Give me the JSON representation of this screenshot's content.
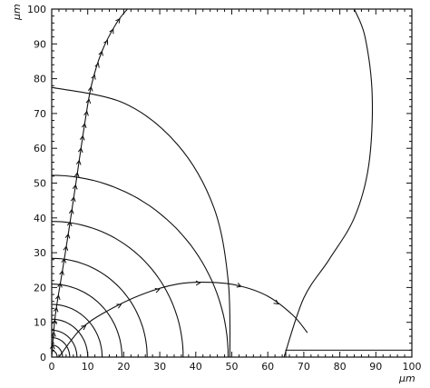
{
  "chart_data": {
    "type": "line",
    "title": "",
    "xlabel": "μm",
    "ylabel": "μm",
    "xlim": [
      0,
      100
    ],
    "ylim": [
      0,
      100
    ],
    "x_ticks": [
      "0",
      "10",
      "20",
      "30",
      "40",
      "50",
      "60",
      "70",
      "80",
      "90",
      "100"
    ],
    "y_ticks": [
      "0",
      "10",
      "20",
      "30",
      "40",
      "50",
      "60",
      "70",
      "80",
      "90",
      "100"
    ],
    "grid": false,
    "equipotential_lines": [
      {
        "x_intercept": 1.5
      },
      {
        "x_intercept": 3
      },
      {
        "x_intercept": 5
      },
      {
        "x_intercept": 7
      },
      {
        "x_intercept": 10
      },
      {
        "x_intercept": 14
      },
      {
        "x_intercept": 19.5
      },
      {
        "x_intercept": 26.5
      },
      {
        "x_intercept": 36.5
      },
      {
        "x_intercept": 49
      }
    ],
    "large_equipotential": {
      "points": [
        [
          0,
          77.5
        ],
        [
          20,
          73
        ],
        [
          35,
          61
        ],
        [
          45,
          43
        ],
        [
          49,
          22
        ],
        [
          49.5,
          0
        ]
      ]
    },
    "side_line": {
      "points": [
        [
          59.5,
          0
        ],
        [
          60.5,
          6
        ],
        [
          66,
          16
        ],
        [
          74,
          26
        ],
        [
          82,
          38
        ],
        [
          86,
          55
        ],
        [
          87,
          75
        ],
        [
          85,
          90
        ],
        [
          83,
          100
        ]
      ]
    },
    "outer_contour": {
      "points": [
        [
          84,
          100
        ],
        [
          87,
          92
        ],
        [
          89,
          75
        ],
        [
          88,
          55
        ],
        [
          84,
          40
        ],
        [
          77,
          28
        ],
        [
          70,
          17
        ],
        [
          64.5,
          0
        ]
      ]
    },
    "field_line_vertical": {
      "points": [
        [
          0,
          0
        ],
        [
          1,
          12
        ],
        [
          3,
          25
        ],
        [
          5,
          38
        ],
        [
          7,
          52
        ],
        [
          9,
          66
        ],
        [
          11,
          78
        ],
        [
          14,
          88
        ],
        [
          18,
          96
        ],
        [
          21,
          100
        ]
      ]
    },
    "field_line_loop": {
      "points": [
        [
          2,
          0
        ],
        [
          8,
          8
        ],
        [
          15,
          13
        ],
        [
          25,
          18
        ],
        [
          35,
          21
        ],
        [
          44,
          21.5
        ],
        [
          52,
          20.5
        ],
        [
          60,
          17.5
        ],
        [
          67,
          12
        ],
        [
          71,
          7
        ]
      ]
    },
    "strip_x_range": [
      65,
      100
    ],
    "strip_height": 2
  }
}
